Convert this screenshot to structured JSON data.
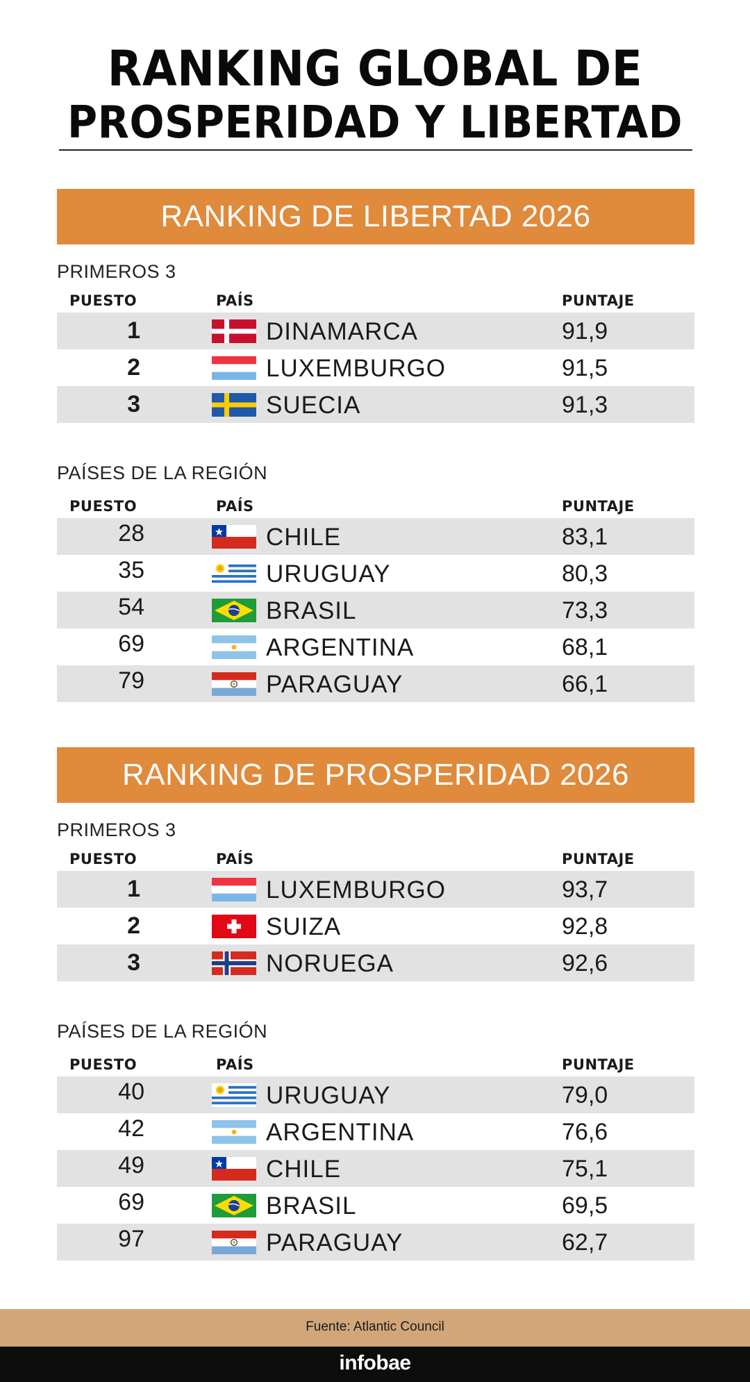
{
  "title": {
    "line1": "RANKING GLOBAL DE",
    "line2": "PROSPERIDAD Y LIBERTAD"
  },
  "columns": {
    "rank": "PUESTO",
    "country": "PAÍS",
    "score": "PUNTAJE"
  },
  "libertad": {
    "banner": "RANKING DE LIBERTAD 2026",
    "top_label": "PRIMEROS 3",
    "top": [
      {
        "rank": "1",
        "country": "DINAMARCA",
        "score": "91,9",
        "flag": "denmark-flag"
      },
      {
        "rank": "2",
        "country": "LUXEMBURGO",
        "score": "91,5",
        "flag": "luxembourg-flag"
      },
      {
        "rank": "3",
        "country": "SUECIA",
        "score": "91,3",
        "flag": "sweden-flag"
      }
    ],
    "region_label": "PAÍSES DE LA REGIÓN",
    "region": [
      {
        "rank": "28",
        "country": "CHILE",
        "score": "83,1",
        "flag": "chile-flag"
      },
      {
        "rank": "35",
        "country": "URUGUAY",
        "score": "80,3",
        "flag": "uruguay-flag"
      },
      {
        "rank": "54",
        "country": "BRASIL",
        "score": "73,3",
        "flag": "brazil-flag"
      },
      {
        "rank": "69",
        "country": "ARGENTINA",
        "score": "68,1",
        "flag": "argentina-flag"
      },
      {
        "rank": "79",
        "country": "PARAGUAY",
        "score": "66,1",
        "flag": "paraguay-flag"
      }
    ]
  },
  "prosperidad": {
    "banner": "RANKING DE PROSPERIDAD 2026",
    "top_label": "PRIMEROS 3",
    "top": [
      {
        "rank": "1",
        "country": "LUXEMBURGO",
        "score": "93,7",
        "flag": "luxembourg-flag"
      },
      {
        "rank": "2",
        "country": "SUIZA",
        "score": "92,8",
        "flag": "switzerland-flag"
      },
      {
        "rank": "3",
        "country": "NORUEGA",
        "score": "92,6",
        "flag": "norway-flag"
      }
    ],
    "region_label": "PAÍSES DE LA REGIÓN",
    "region": [
      {
        "rank": "40",
        "country": "URUGUAY",
        "score": "79,0",
        "flag": "uruguay-flag"
      },
      {
        "rank": "42",
        "country": "ARGENTINA",
        "score": "76,6",
        "flag": "argentina-flag"
      },
      {
        "rank": "49",
        "country": "CHILE",
        "score": "75,1",
        "flag": "chile-flag"
      },
      {
        "rank": "69",
        "country": "BRASIL",
        "score": "69,5",
        "flag": "brazil-flag"
      },
      {
        "rank": "97",
        "country": "PARAGUAY",
        "score": "62,7",
        "flag": "paraguay-flag"
      }
    ]
  },
  "footer": {
    "source": "Fuente: Atlantic Council",
    "brand": "infobae"
  },
  "colors": {
    "banner": "#E08A3C",
    "row_shade": "#e2e2e2",
    "footer": "#D2A679",
    "brand_bar": "#0d0d0d"
  }
}
